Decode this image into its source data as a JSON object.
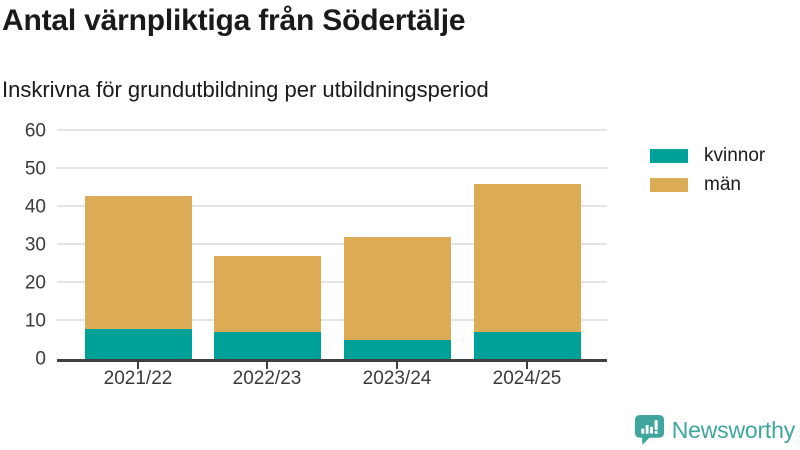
{
  "header": {
    "title": "Antal värnpliktiga från Södertälje",
    "subtitle": "Inskrivna för grundutbildning per utbildningsperiod"
  },
  "chart_data": {
    "type": "bar",
    "stacked": true,
    "categories": [
      "2021/22",
      "2022/23",
      "2023/24",
      "2024/25"
    ],
    "series": [
      {
        "name": "kvinnor",
        "color": "#00a298",
        "values": [
          8,
          7,
          5,
          7
        ]
      },
      {
        "name": "män",
        "color": "#dbac55",
        "values": [
          35,
          20,
          27,
          39
        ]
      }
    ],
    "totals": [
      43,
      27,
      32,
      46
    ],
    "title": "Antal värnpliktiga från Södertälje",
    "subtitle": "Inskrivna för grundutbildning per utbildningsperiod",
    "xlabel": "",
    "ylabel": "",
    "ylim": [
      0,
      60
    ],
    "yticks": [
      0,
      10,
      20,
      30,
      40,
      50,
      60
    ],
    "grid": true,
    "legend_position": "right"
  },
  "branding": {
    "name": "Newsworthy",
    "icon": "speech-bubble-bar-chart-icon",
    "color": "#3fa69e"
  }
}
